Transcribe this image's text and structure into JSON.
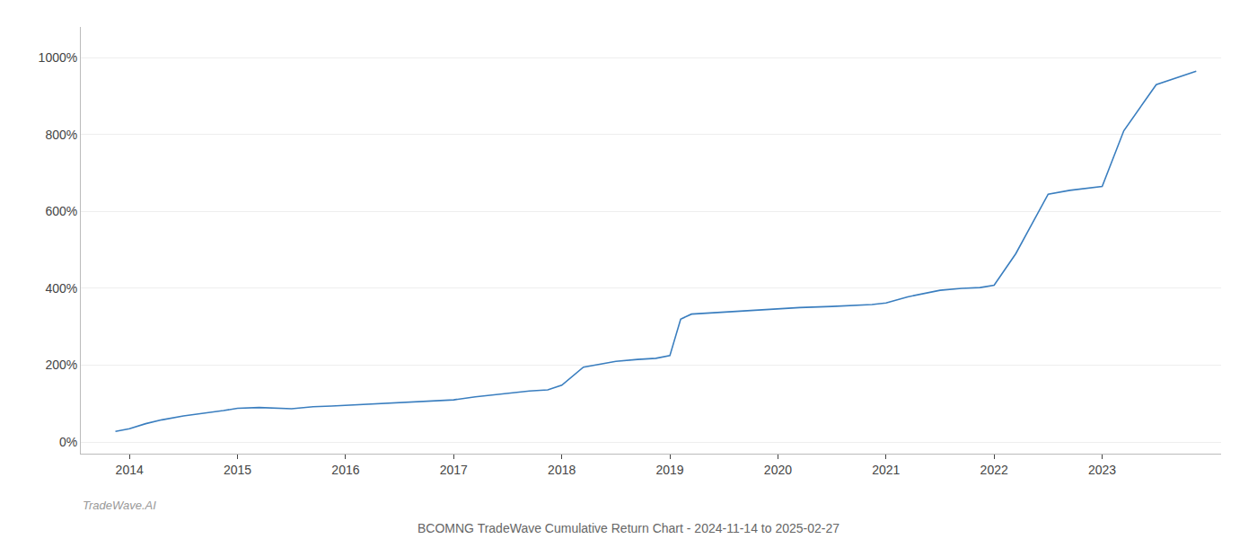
{
  "chart_data": {
    "type": "line",
    "title": "BCOMNG TradeWave Cumulative Return Chart - 2024-11-14 to 2025-02-27",
    "annotations": [
      "TradeWave.AI"
    ],
    "color": "#3a7ebf",
    "grid": "y",
    "x": [
      2013.87,
      2014.0,
      2014.15,
      2014.3,
      2014.5,
      2014.7,
      2014.87,
      2015.0,
      2015.2,
      2015.5,
      2015.7,
      2015.87,
      2016.0,
      2016.2,
      2016.5,
      2016.7,
      2016.87,
      2017.0,
      2017.2,
      2017.5,
      2017.7,
      2017.87,
      2018.0,
      2018.2,
      2018.5,
      2018.7,
      2018.87,
      2019.0,
      2019.1,
      2019.2,
      2019.5,
      2019.7,
      2019.87,
      2020.0,
      2020.2,
      2020.5,
      2020.7,
      2020.87,
      2021.0,
      2021.2,
      2021.5,
      2021.7,
      2021.87,
      2022.0,
      2022.2,
      2022.5,
      2022.7,
      2022.87,
      2023.0,
      2023.2,
      2023.5,
      2023.87
    ],
    "values": [
      28,
      35,
      48,
      58,
      68,
      75,
      82,
      88,
      90,
      87,
      92,
      94,
      96,
      99,
      102,
      106,
      108,
      110,
      118,
      128,
      133,
      136,
      148,
      195,
      210,
      215,
      218,
      225,
      320,
      333,
      338,
      342,
      344,
      346,
      350,
      353,
      356,
      358,
      362,
      378,
      395,
      400,
      402,
      408,
      490,
      645,
      655,
      660,
      665,
      810,
      930,
      965
    ],
    "xlim": [
      2013.55,
      2024.1
    ],
    "xticks": [
      2014,
      2015,
      2016,
      2017,
      2018,
      2019,
      2020,
      2021,
      2022,
      2023
    ],
    "ylim": [
      -30,
      1080
    ],
    "yticks": [
      {
        "value": 0,
        "label": "0%"
      },
      {
        "value": 200,
        "label": "200%"
      },
      {
        "value": 400,
        "label": "400%"
      },
      {
        "value": 600,
        "label": "600%"
      },
      {
        "value": 800,
        "label": "800%"
      },
      {
        "value": 1000,
        "label": "1000%"
      }
    ]
  }
}
